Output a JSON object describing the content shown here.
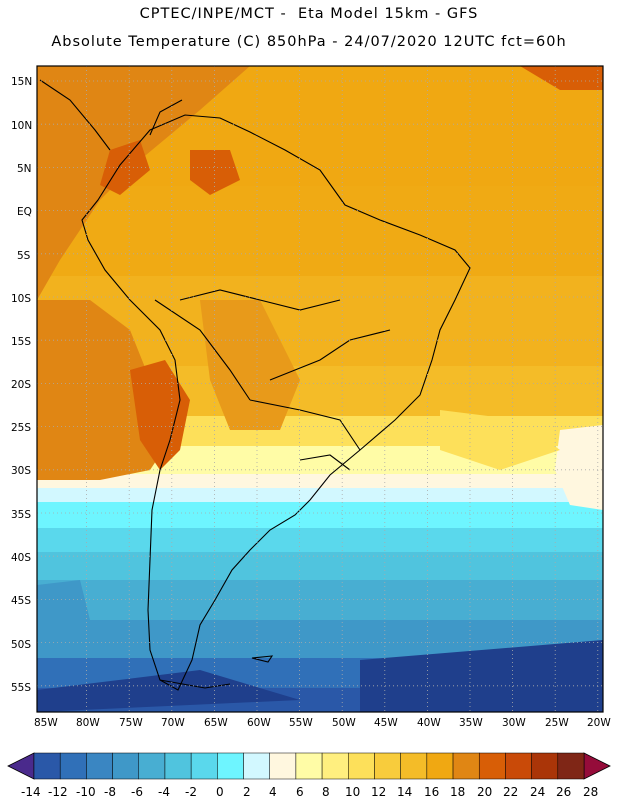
{
  "header": {
    "line1": "CPTEC/INPE/MCT -  Eta Model 15km - GFS",
    "line2": "Absolute Temperature (C) 850hPa - 24/07/2020 12UTC fct=60h"
  },
  "map": {
    "lat_labels": [
      "15N",
      "10N",
      "5N",
      "EQ",
      "5S",
      "10S",
      "15S",
      "20S",
      "25S",
      "30S",
      "35S",
      "40S",
      "45S",
      "50S",
      "55S"
    ],
    "lon_labels": [
      "85W",
      "80W",
      "75W",
      "70W",
      "65W",
      "60W",
      "55W",
      "50W",
      "45W",
      "40W",
      "35W",
      "30W",
      "25W",
      "20W"
    ]
  },
  "legend": {
    "labels": [
      "-14",
      "-12",
      "-10",
      "-8",
      "-6",
      "-4",
      "-2",
      "0",
      "2",
      "4",
      "6",
      "8",
      "10",
      "12",
      "14",
      "16",
      "18",
      "20",
      "22",
      "24",
      "26",
      "28"
    ],
    "colors": [
      "#1f3f8c",
      "#2a58a8",
      "#3070b8",
      "#3a86c2",
      "#3f98c8",
      "#48aed2",
      "#50c4de",
      "#5ad8ec",
      "#6ef5ff",
      "#d2f8ff",
      "#fff7df",
      "#fffca6",
      "#ffef7f",
      "#fde05a",
      "#f8cc3c",
      "#f4bc28",
      "#f0a812",
      "#e08614",
      "#d85e06",
      "#c94a08",
      "#aa3508",
      "#7f2616",
      "#950c3a"
    ]
  }
}
